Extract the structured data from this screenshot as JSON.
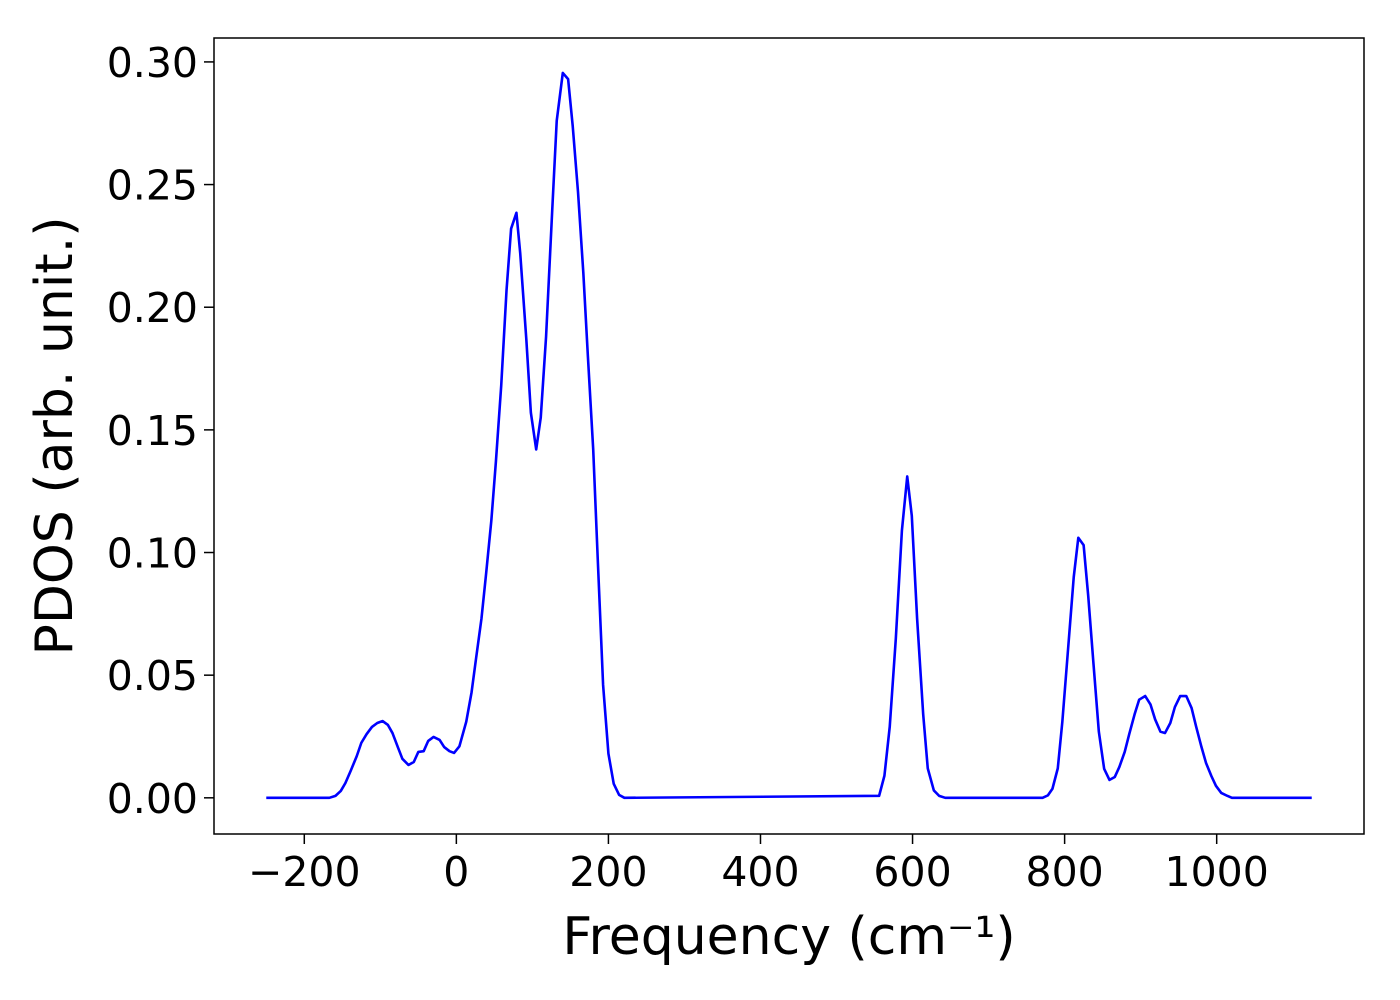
{
  "chart_data": {
    "type": "line",
    "xlabel": "Frequency (cm⁻¹)",
    "ylabel": "PDOS (arb. unit.)",
    "xlim": [
      -318.75,
      1193.75
    ],
    "ylim": [
      -0.01475,
      0.30975
    ],
    "xticks": [
      {
        "value": -200,
        "label": "−200"
      },
      0,
      200,
      400,
      600,
      800,
      1000
    ],
    "yticks": [
      {
        "value": 0,
        "label": "0.00"
      },
      {
        "value": 0.05,
        "label": "0.05"
      },
      {
        "value": 0.1,
        "label": "0.10"
      },
      {
        "value": 0.15,
        "label": "0.15"
      },
      {
        "value": 0.2,
        "label": "0.20"
      },
      {
        "value": 0.25,
        "label": "0.25"
      },
      {
        "value": 0.3,
        "label": "0.30"
      }
    ],
    "grid": false,
    "series": [
      {
        "color": "#0000ff",
        "x": [
          -250,
          -167,
          -159,
          -152,
          -146,
          -139,
          -131,
          -125,
          -118,
          -111,
          -104,
          -97,
          -90,
          -84,
          -77,
          -71,
          -63,
          -56,
          -50,
          -43,
          -37,
          -30,
          -22,
          -16,
          -9,
          -3,
          4,
          13,
          20,
          26,
          33,
          39,
          46,
          52,
          59,
          66,
          72,
          79,
          84,
          92,
          98,
          105,
          111,
          118,
          126,
          132,
          140,
          147,
          153,
          160,
          167,
          173,
          180,
          186,
          193,
          200,
          207,
          214,
          221,
          556,
          563,
          570,
          578,
          586,
          593,
          599,
          606,
          614,
          620,
          628,
          635,
          643,
          771,
          778,
          784,
          791,
          797,
          804,
          812,
          818,
          825,
          831,
          838,
          845,
          852,
          859,
          866,
          872,
          879,
          885,
          892,
          898,
          906,
          913,
          919,
          926,
          932,
          939,
          945,
          952,
          960,
          967,
          973,
          980,
          986,
          993,
          999,
          1006,
          1014,
          1020,
          1125
        ],
        "values": [
          0,
          0,
          0.0008,
          0.0028,
          0.006,
          0.011,
          0.017,
          0.0224,
          0.026,
          0.0289,
          0.0305,
          0.0313,
          0.0297,
          0.0264,
          0.0207,
          0.0159,
          0.0134,
          0.0146,
          0.0187,
          0.019,
          0.0232,
          0.0248,
          0.0236,
          0.0207,
          0.019,
          0.0183,
          0.021,
          0.031,
          0.043,
          0.057,
          0.073,
          0.091,
          0.113,
          0.137,
          0.168,
          0.207,
          0.232,
          0.2385,
          0.222,
          0.187,
          0.157,
          0.142,
          0.155,
          0.188,
          0.239,
          0.276,
          0.2955,
          0.293,
          0.274,
          0.247,
          0.214,
          0.18,
          0.142,
          0.097,
          0.046,
          0.018,
          0.0057,
          0.0012,
          0,
          0.0008,
          0.009,
          0.029,
          0.065,
          0.109,
          0.131,
          0.115,
          0.073,
          0.034,
          0.012,
          0.003,
          0.0008,
          0,
          0,
          0.001,
          0.0037,
          0.012,
          0.031,
          0.0585,
          0.09,
          0.106,
          0.103,
          0.0825,
          0.0545,
          0.027,
          0.0118,
          0.0073,
          0.0085,
          0.0126,
          0.0187,
          0.026,
          0.034,
          0.04,
          0.0415,
          0.038,
          0.032,
          0.027,
          0.0264,
          0.0305,
          0.037,
          0.0415,
          0.0415,
          0.0366,
          0.029,
          0.0207,
          0.0142,
          0.0089,
          0.0049,
          0.002,
          0.0008,
          0,
          0
        ]
      }
    ]
  }
}
